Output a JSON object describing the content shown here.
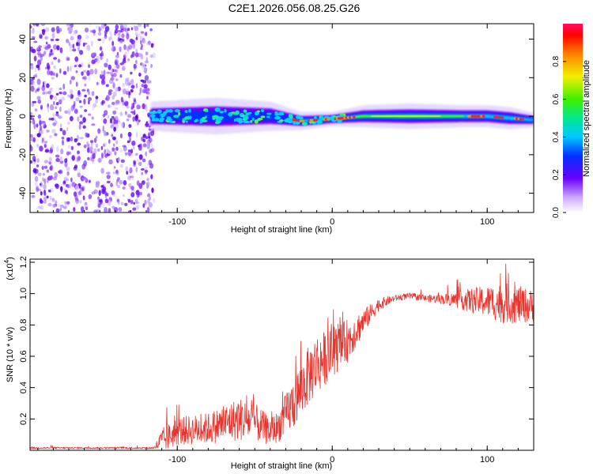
{
  "title": "C2E1.2026.056.08.25.G26",
  "chart_data": [
    {
      "type": "heatmap",
      "name": "spectrogram",
      "xlabel": "Height of straight line (km)",
      "ylabel": "Frequency (Hz)",
      "xlim": [
        -195,
        130
      ],
      "ylim": [
        -50,
        48
      ],
      "xticks": [
        -100,
        0,
        100
      ],
      "yticks": [
        -40,
        -20,
        0,
        20,
        40
      ],
      "noise_region_x": [
        -195,
        -117
      ],
      "signal_band": {
        "x": [
          -117,
          -75,
          -40,
          -20,
          0,
          20,
          50,
          85,
          100,
          115,
          130
        ],
        "center_freq": [
          0,
          0,
          0,
          -2.5,
          -1.5,
          0,
          0,
          0,
          0,
          -1,
          -2
        ],
        "half_width": [
          4,
          5,
          4,
          2.5,
          2,
          3,
          3.5,
          3,
          3,
          3,
          2
        ]
      },
      "colorbar": {
        "label": "Normalized spectral amplitude",
        "range": [
          0,
          1
        ],
        "ticks": [
          0.0,
          0.2,
          0.4,
          0.6,
          0.8
        ]
      }
    },
    {
      "type": "line",
      "name": "snr",
      "xlabel": "Height of straight line (km)",
      "ylabel": "SNR (10 * v/v)",
      "scale_label": "(x10",
      "scale_exponent": "4",
      "xlim": [
        -195,
        130
      ],
      "ylim": [
        0,
        1.22
      ],
      "xticks": [
        -100,
        0,
        100
      ],
      "yticks": [
        0.2,
        0.4,
        0.6,
        0.8,
        1.0,
        1.2
      ],
      "color": "#e8342c",
      "x": [
        -195,
        -115,
        -110,
        -100,
        -80,
        -60,
        -50,
        -40,
        -35,
        -25,
        -15,
        -10,
        0,
        10,
        20,
        30,
        40,
        50,
        60,
        70,
        80,
        90,
        100,
        110,
        120,
        130
      ],
      "y": [
        0.015,
        0.015,
        0.06,
        0.12,
        0.14,
        0.2,
        0.18,
        0.12,
        0.15,
        0.3,
        0.48,
        0.55,
        0.62,
        0.7,
        0.82,
        0.93,
        0.97,
        0.985,
        0.97,
        0.965,
        0.96,
        0.955,
        0.95,
        0.94,
        0.93,
        0.92
      ],
      "noise_amp": [
        0.006,
        0.006,
        0.08,
        0.09,
        0.1,
        0.14,
        0.12,
        0.09,
        0.1,
        0.17,
        0.19,
        0.2,
        0.15,
        0.14,
        0.08,
        0.04,
        0.02,
        0.02,
        0.02,
        0.03,
        0.05,
        0.08,
        0.1,
        0.13,
        0.12,
        0.1
      ]
    }
  ]
}
